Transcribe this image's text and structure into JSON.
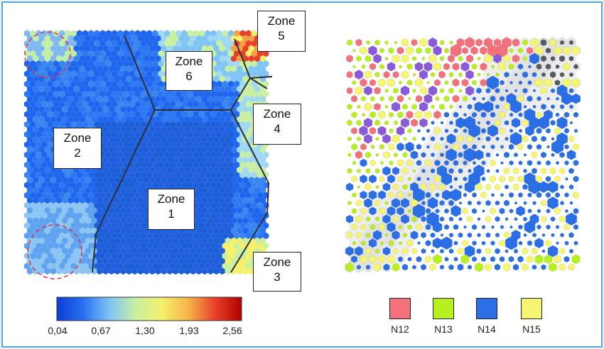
{
  "zones": [
    {
      "name": "zone-1",
      "line1": "Zone",
      "line2": "1"
    },
    {
      "name": "zone-2",
      "line1": "Zone",
      "line2": "2"
    },
    {
      "name": "zone-3",
      "line1": "Zone",
      "line2": "3"
    },
    {
      "name": "zone-4",
      "line1": "Zone",
      "line2": "4"
    },
    {
      "name": "zone-5",
      "line1": "Zone",
      "line2": "5"
    },
    {
      "name": "zone-6",
      "line1": "Zone",
      "line2": "6"
    }
  ],
  "colorbar": {
    "ticks": [
      "0,04",
      "0,67",
      "1,30",
      "1,93",
      "2,56"
    ],
    "colors": [
      "#0a3fd6",
      "#2a6ff0",
      "#7fc4f5",
      "#c9f0a0",
      "#f4f06a",
      "#f5b24a",
      "#e8402a",
      "#b00000"
    ]
  },
  "legend": [
    {
      "label": "N12",
      "color": "#f4707a"
    },
    {
      "label": "N13",
      "color": "#b8ef1e"
    },
    {
      "label": "N14",
      "color": "#2a6fe6"
    },
    {
      "label": "N15",
      "color": "#f5f572"
    }
  ]
}
